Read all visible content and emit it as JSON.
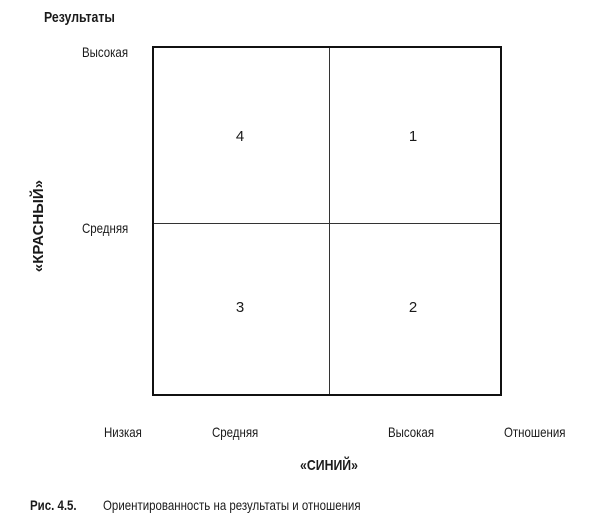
{
  "y_axis": {
    "title": "Результаты",
    "high_label": "Высокая",
    "mid_label": "Средняя",
    "name": "«КРАСНЫЙ»"
  },
  "x_axis": {
    "low_label": "Низкая",
    "mid_label": "Средняя",
    "high_label": "Высокая",
    "title": "Отношения",
    "name": "«СИНИЙ»"
  },
  "quadrants": {
    "top_left": "4",
    "top_right": "1",
    "bottom_left": "3",
    "bottom_right": "2"
  },
  "caption": {
    "number": "Рис. 4.5.",
    "text": "Ориентированность на результаты и отношения"
  }
}
